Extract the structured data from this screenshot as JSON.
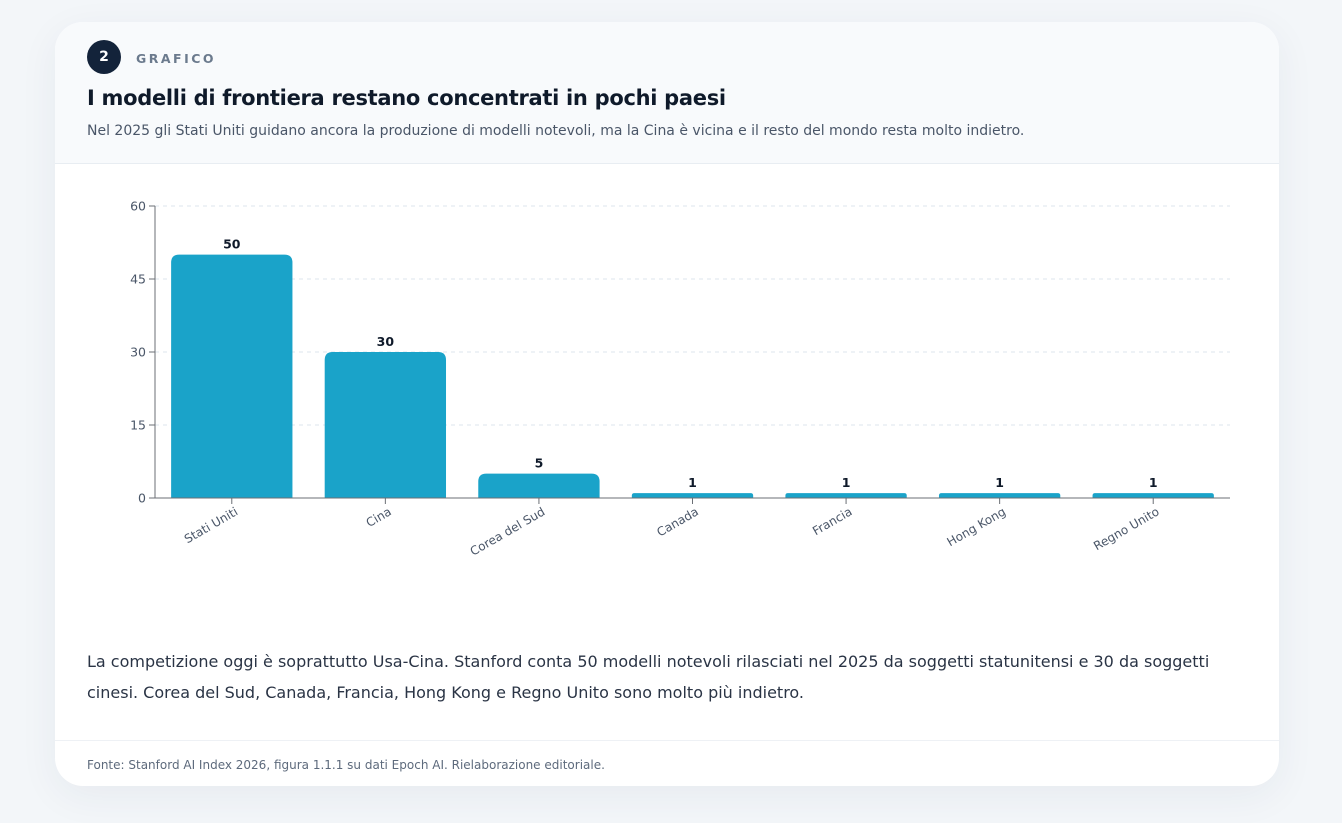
{
  "card": {
    "badge_number": "2",
    "kicker": "GRAFICO",
    "title": "I modelli di frontiera restano concentrati in pochi paesi",
    "subtitle": "Nel 2025 gli Stati Uniti guidano ancora la produzione di modelli notevoli, ma la Cina è vicina e il resto del mondo resta molto indietro.",
    "body_text": "La competizione oggi è soprattutto Usa-Cina. Stanford conta 50 modelli notevoli rilasciati nel 2025 da soggetti statunitensi e 30 da soggetti cinesi. Corea del Sud, Canada, Francia, Hong Kong e Regno Unito sono molto più indietro.",
    "source": "Fonte: Stanford AI Index 2026, figura 1.1.1 su dati Epoch AI. Rielaborazione editoriale."
  },
  "colors": {
    "bar": "#1aa3c9",
    "badge_bg": "#13233a",
    "grid": "#dde6ee",
    "axis": "#6b6f75",
    "value_label": "#0f1a2a",
    "tick_label": "#4a5668"
  },
  "chart_data": {
    "type": "bar",
    "title": "I modelli di frontiera restano concentrati in pochi paesi",
    "xlabel": "",
    "ylabel": "",
    "categories": [
      "Stati Uniti",
      "Cina",
      "Corea del Sud",
      "Canada",
      "Francia",
      "Hong Kong",
      "Regno Unito"
    ],
    "values": [
      50,
      30,
      5,
      1,
      1,
      1,
      1
    ],
    "ylim": [
      0,
      60
    ],
    "yticks": [
      0,
      15,
      30,
      45,
      60
    ],
    "grid": true,
    "data_labels": true,
    "legend": "none",
    "x_tick_rotation_deg": -30
  }
}
